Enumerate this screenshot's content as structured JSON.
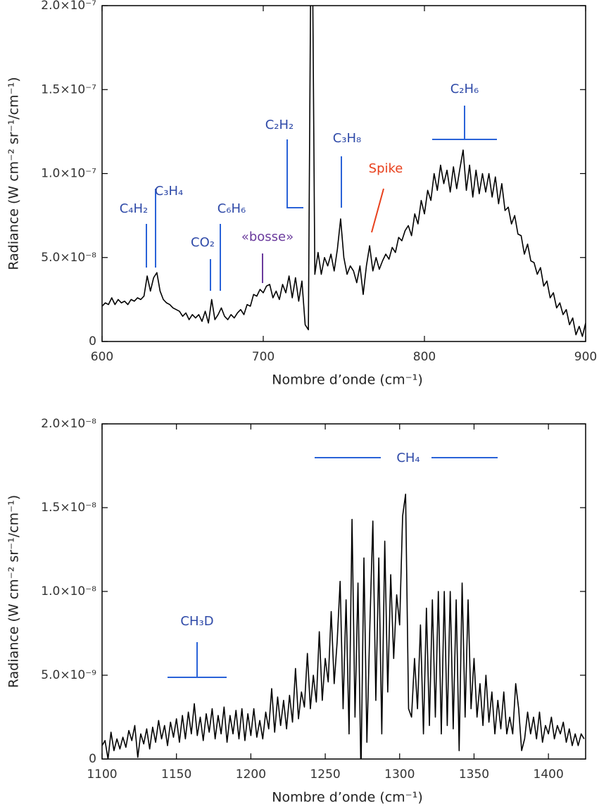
{
  "chart_data": [
    {
      "type": "line",
      "color": "#000000",
      "xlabel": "Nombre d’onde (cm⁻¹)",
      "ylabel": "Radiance (W cm⁻² sr⁻¹/cm⁻¹)",
      "xlim": [
        600,
        900
      ],
      "ylim": [
        0,
        2e-07
      ],
      "xticks": [
        600,
        700,
        800,
        900
      ],
      "yticks": [
        0,
        {
          "value": 5e-08,
          "label": "5.0×10⁻⁸"
        },
        {
          "value": 1e-07,
          "label": "1.0×10⁻⁷"
        },
        {
          "value": 1.5e-07,
          "label": "1.5×10⁻⁷"
        },
        {
          "value": 2e-07,
          "label": "2.0×10⁻⁷"
        }
      ],
      "x": [
        600,
        602,
        604,
        606,
        608,
        610,
        612,
        614,
        616,
        618,
        620,
        622,
        624,
        626,
        628,
        630,
        632,
        634,
        636,
        638,
        640,
        642,
        644,
        646,
        648,
        650,
        652,
        654,
        656,
        658,
        660,
        662,
        664,
        666,
        668,
        670,
        672,
        674,
        676,
        678,
        680,
        682,
        684,
        686,
        688,
        690,
        692,
        694,
        696,
        698,
        700,
        702,
        704,
        706,
        708,
        710,
        712,
        714,
        716,
        718,
        720,
        722,
        724,
        726,
        728,
        730,
        732,
        734,
        736,
        738,
        740,
        742,
        744,
        746,
        748,
        750,
        752,
        754,
        756,
        758,
        760,
        762,
        764,
        766,
        768,
        770,
        772,
        774,
        776,
        778,
        780,
        782,
        784,
        786,
        788,
        790,
        792,
        794,
        796,
        798,
        800,
        802,
        804,
        806,
        808,
        810,
        812,
        814,
        816,
        818,
        820,
        822,
        824,
        826,
        828,
        830,
        832,
        834,
        836,
        838,
        840,
        842,
        844,
        846,
        848,
        850,
        852,
        854,
        856,
        858,
        860,
        862,
        864,
        866,
        868,
        870,
        872,
        874,
        876,
        878,
        880,
        882,
        884,
        886,
        888,
        890,
        892,
        894,
        896,
        898,
        900
      ],
      "values": [
        2.1e-08,
        2.3e-08,
        2.2e-08,
        2.6e-08,
        2.2e-08,
        2.5e-08,
        2.3e-08,
        2.4e-08,
        2.2e-08,
        2.5e-08,
        2.4e-08,
        2.6e-08,
        2.5e-08,
        2.7e-08,
        3.9e-08,
        3e-08,
        3.8e-08,
        4.1e-08,
        3e-08,
        2.5e-08,
        2.3e-08,
        2.2e-08,
        2e-08,
        1.9e-08,
        1.8e-08,
        1.5e-08,
        1.7e-08,
        1.3e-08,
        1.6e-08,
        1.4e-08,
        1.6e-08,
        1.2e-08,
        1.8e-08,
        1.1e-08,
        2.5e-08,
        1.3e-08,
        1.6e-08,
        2e-08,
        1.5e-08,
        1.3e-08,
        1.6e-08,
        1.4e-08,
        1.7e-08,
        1.9e-08,
        1.6e-08,
        2.2e-08,
        2.1e-08,
        2.8e-08,
        2.7e-08,
        3.1e-08,
        2.9e-08,
        3.3e-08,
        3.4e-08,
        2.6e-08,
        3e-08,
        2.5e-08,
        3.4e-08,
        2.9e-08,
        3.9e-08,
        2.6e-08,
        3.8e-08,
        2.4e-08,
        3.6e-08,
        1e-08,
        7e-09,
        3e-07,
        4e-08,
        5.3e-08,
        4e-08,
        5e-08,
        4.5e-08,
        5.2e-08,
        4.2e-08,
        5.5e-08,
        7.3e-08,
        5e-08,
        4e-08,
        4.5e-08,
        4.2e-08,
        3.5e-08,
        4.5e-08,
        2.8e-08,
        4.5e-08,
        5.7e-08,
        4.2e-08,
        5e-08,
        4.3e-08,
        4.8e-08,
        5.2e-08,
        4.9e-08,
        5.6e-08,
        5.3e-08,
        6.2e-08,
        6e-08,
        6.6e-08,
        6.9e-08,
        6.3e-08,
        7.6e-08,
        7e-08,
        8.4e-08,
        7.6e-08,
        9e-08,
        8.4e-08,
        1e-07,
        9e-08,
        1.05e-07,
        9.4e-08,
        1.02e-07,
        8.9e-08,
        1.04e-07,
        9.1e-08,
        1.03e-07,
        1.14e-07,
        9e-08,
        1.05e-07,
        8.6e-08,
        1.02e-07,
        8.8e-08,
        1e-07,
        8.9e-08,
        1e-07,
        8.6e-08,
        9.8e-08,
        8.2e-08,
        9.4e-08,
        7.8e-08,
        8e-08,
        7e-08,
        7.5e-08,
        6.4e-08,
        6.3e-08,
        5.2e-08,
        5.8e-08,
        4.8e-08,
        4.7e-08,
        4e-08,
        4.4e-08,
        3.3e-08,
        3.6e-08,
        2.6e-08,
        2.9e-08,
        2e-08,
        2.3e-08,
        1.6e-08,
        1.9e-08,
        1e-08,
        1.4e-08,
        4e-09,
        9e-09,
        3e-09,
        1.1e-08
      ],
      "annotations": [
        {
          "text": "C₄H₂",
          "color": "#2f4aa8"
        },
        {
          "text": "C₃H₄",
          "color": "#2f4aa8"
        },
        {
          "text": "CO₂",
          "color": "#2f4aa8"
        },
        {
          "text": "C₆H₆",
          "color": "#2f4aa8"
        },
        {
          "text": "«bosse»",
          "color": "#6a3a9c"
        },
        {
          "text": "C₂H₂",
          "color": "#2f4aa8"
        },
        {
          "text": "C₃H₈",
          "color": "#2f4aa8"
        },
        {
          "text": "Spike",
          "color": "#e8401c"
        },
        {
          "text": "C₂H₆",
          "color": "#2f4aa8"
        }
      ]
    },
    {
      "type": "line",
      "color": "#000000",
      "xlabel": "Nombre d’onde (cm⁻¹)",
      "ylabel": "Radiance (W cm⁻² sr⁻¹/cm⁻¹)",
      "xlim": [
        1100,
        1425
      ],
      "ylim": [
        0,
        2e-08
      ],
      "xticks": [
        1100,
        1150,
        1200,
        1250,
        1300,
        1350,
        1400
      ],
      "yticks": [
        0,
        {
          "value": 5e-09,
          "label": "5.0×10⁻⁹"
        },
        {
          "value": 1e-08,
          "label": "1.0×10⁻⁸"
        },
        {
          "value": 1.5e-08,
          "label": "1.5×10⁻⁸"
        },
        {
          "value": 2e-08,
          "label": "2.0×10⁻⁸"
        }
      ],
      "x": [
        1100,
        1102,
        1104,
        1106,
        1108,
        1110,
        1112,
        1114,
        1116,
        1118,
        1120,
        1122,
        1124,
        1126,
        1128,
        1130,
        1132,
        1134,
        1136,
        1138,
        1140,
        1142,
        1144,
        1146,
        1148,
        1150,
        1152,
        1154,
        1156,
        1158,
        1160,
        1162,
        1164,
        1166,
        1168,
        1170,
        1172,
        1174,
        1176,
        1178,
        1180,
        1182,
        1184,
        1186,
        1188,
        1190,
        1192,
        1194,
        1196,
        1198,
        1200,
        1202,
        1204,
        1206,
        1208,
        1210,
        1212,
        1214,
        1216,
        1218,
        1220,
        1222,
        1224,
        1226,
        1228,
        1230,
        1232,
        1234,
        1236,
        1238,
        1240,
        1242,
        1244,
        1246,
        1248,
        1250,
        1252,
        1254,
        1256,
        1258,
        1260,
        1262,
        1264,
        1266,
        1268,
        1270,
        1272,
        1274,
        1276,
        1278,
        1280,
        1282,
        1284,
        1286,
        1288,
        1290,
        1292,
        1294,
        1296,
        1298,
        1300,
        1302,
        1304,
        1306,
        1308,
        1310,
        1312,
        1314,
        1316,
        1318,
        1320,
        1322,
        1324,
        1326,
        1328,
        1330,
        1332,
        1334,
        1336,
        1338,
        1340,
        1342,
        1344,
        1346,
        1348,
        1350,
        1352,
        1354,
        1356,
        1358,
        1360,
        1362,
        1364,
        1366,
        1368,
        1370,
        1372,
        1374,
        1376,
        1378,
        1380,
        1382,
        1384,
        1386,
        1388,
        1390,
        1392,
        1394,
        1396,
        1398,
        1400,
        1402,
        1404,
        1406,
        1408,
        1410,
        1412,
        1414,
        1416,
        1418,
        1420,
        1422,
        1424
      ],
      "values": [
        8e-10,
        1.1e-09,
        0.0,
        1.6e-09,
        5e-10,
        1.2e-09,
        6e-10,
        1.3e-09,
        7e-10,
        1.7e-09,
        1.1e-09,
        2e-09,
        1e-10,
        1.5e-09,
        9e-10,
        1.8e-09,
        6e-10,
        1.9e-09,
        1e-09,
        2.3e-09,
        1.2e-09,
        2e-09,
        8e-10,
        2.2e-09,
        1.3e-09,
        2.4e-09,
        1e-09,
        2.6e-09,
        1.2e-09,
        2.8e-09,
        1.5e-09,
        3.3e-09,
        1.4e-09,
        2.5e-09,
        1.1e-09,
        2.7e-09,
        1.6e-09,
        3e-09,
        1.2e-09,
        2.6e-09,
        1.5e-09,
        3.1e-09,
        1e-09,
        2.6e-09,
        1.5e-09,
        2.9e-09,
        1.2e-09,
        3e-09,
        1.1e-09,
        2.7e-09,
        1.4e-09,
        3e-09,
        1.3e-09,
        2.3e-09,
        1.2e-09,
        2.8e-09,
        1.8e-09,
        4.2e-09,
        1.6e-09,
        3.7e-09,
        2e-09,
        3.5e-09,
        1.8e-09,
        3.8e-09,
        2.2e-09,
        5.4e-09,
        2.4e-09,
        4e-09,
        3.1e-09,
        6.3e-09,
        3e-09,
        5e-09,
        3.4e-09,
        7.6e-09,
        3.5e-09,
        6e-09,
        4.6e-09,
        8.8e-09,
        4.5e-09,
        7e-09,
        1.06e-08,
        3e-09,
        9.5e-09,
        1.5e-09,
        1.43e-08,
        2.5e-09,
        1.05e-08,
        -1e-09,
        1.2e-08,
        1e-09,
        8e-09,
        1.42e-08,
        3.5e-09,
        1.2e-08,
        1.5e-09,
        1.3e-08,
        4e-09,
        1.1e-08,
        6e-09,
        9.8e-09,
        8e-09,
        1.45e-08,
        1.58e-08,
        3e-09,
        2.5e-09,
        6e-09,
        3e-09,
        8e-09,
        1.5e-09,
        9e-09,
        2e-09,
        9.5e-09,
        2.5e-09,
        1e-08,
        1.5e-09,
        1e-08,
        2e-09,
        1e-08,
        1.8e-09,
        9.5e-09,
        5e-10,
        1.05e-08,
        2.5e-09,
        9.5e-09,
        3e-09,
        6e-09,
        2.5e-09,
        4.5e-09,
        2e-09,
        5e-09,
        2.2e-09,
        4e-09,
        1.5e-09,
        3.5e-09,
        1.8e-09,
        4e-09,
        1.5e-09,
        2.5e-09,
        1.5e-09,
        4.5e-09,
        3e-09,
        5e-10,
        1.2e-09,
        2.8e-09,
        1.5e-09,
        2.5e-09,
        1.2e-09,
        2.8e-09,
        1e-09,
        2e-09,
        1.5e-09,
        2.5e-09,
        1.2e-09,
        2e-09,
        1.5e-09,
        2.2e-09,
        1e-09,
        1.8e-09,
        8e-10,
        1.5e-09,
        8e-10,
        1.5e-09,
        1.2e-09
      ],
      "annotations": [
        {
          "text": "CH₄",
          "color": "#2f4aa8"
        },
        {
          "text": "CH₃D",
          "color": "#2f4aa8"
        }
      ]
    }
  ]
}
